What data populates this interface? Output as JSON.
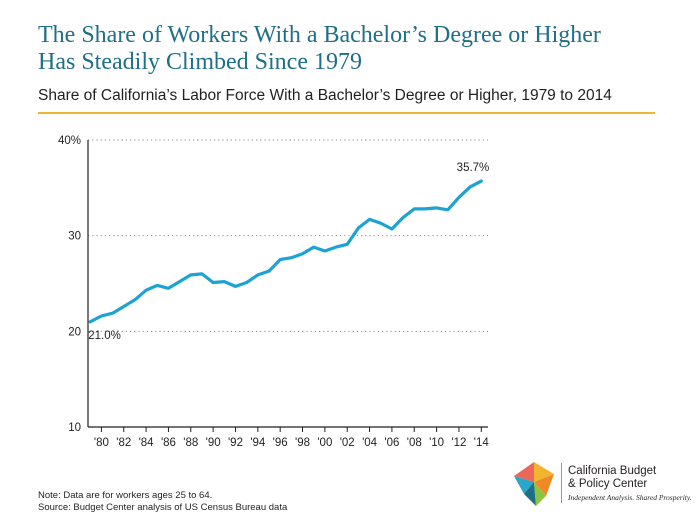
{
  "title_line1": "The Share of Workers With a Bachelor’s Degree or Higher",
  "title_line2": "Has Steadily Climbed Since 1979",
  "subtitle": "Share of California’s Labor Force With a Bachelor’s Degree or Higher, 1979 to 2014",
  "note_line1": "Note: Data are for workers ages 25 to 64.",
  "note_line2": "Source: Budget Center analysis of US Census Bureau data",
  "logo": {
    "name_line1": "California Budget",
    "name_line2": "& Policy Center",
    "tagline": "Independent Analysis. Shared Prosperity."
  },
  "colors": {
    "title": "#1f6f86",
    "line": "#1ca3d4",
    "rule": "#f2b531"
  },
  "chart_data": {
    "type": "line",
    "x": [
      1979,
      1980,
      1981,
      1982,
      1983,
      1984,
      1985,
      1986,
      1987,
      1988,
      1989,
      1990,
      1991,
      1992,
      1993,
      1994,
      1995,
      1996,
      1997,
      1998,
      1999,
      2000,
      2001,
      2002,
      2003,
      2004,
      2005,
      2006,
      2007,
      2008,
      2009,
      2010,
      2011,
      2012,
      2013,
      2014
    ],
    "y": [
      21.0,
      21.6,
      21.9,
      22.6,
      23.3,
      24.3,
      24.8,
      24.5,
      25.2,
      25.9,
      26.0,
      25.1,
      25.2,
      24.7,
      25.1,
      25.9,
      26.3,
      27.5,
      27.7,
      28.1,
      28.8,
      28.4,
      28.8,
      29.1,
      30.8,
      31.7,
      31.3,
      30.7,
      31.9,
      32.8,
      32.8,
      32.9,
      32.7,
      34.0,
      35.1,
      35.7
    ],
    "ylim": [
      10,
      40
    ],
    "yticks": [
      10,
      20,
      30,
      40
    ],
    "ytick_labels": [
      "10",
      "20",
      "30",
      "40%"
    ],
    "xticks": [
      1980,
      1982,
      1984,
      1986,
      1988,
      1990,
      1992,
      1994,
      1996,
      1998,
      2000,
      2002,
      2004,
      2006,
      2008,
      2010,
      2012,
      2014
    ],
    "xtick_labels": [
      "'80",
      "'82",
      "'84",
      "'86",
      "'88",
      "'90",
      "'92",
      "'94",
      "'96",
      "'98",
      "'00",
      "'02",
      "'04",
      "'06",
      "'08",
      "'10",
      "'12",
      "'14"
    ],
    "annotations": [
      {
        "x": 1979,
        "y": 21.0,
        "text": "21.0%"
      },
      {
        "x": 2014,
        "y": 35.7,
        "text": "35.7%"
      }
    ],
    "grid": true,
    "xlabel": "",
    "ylabel": ""
  }
}
